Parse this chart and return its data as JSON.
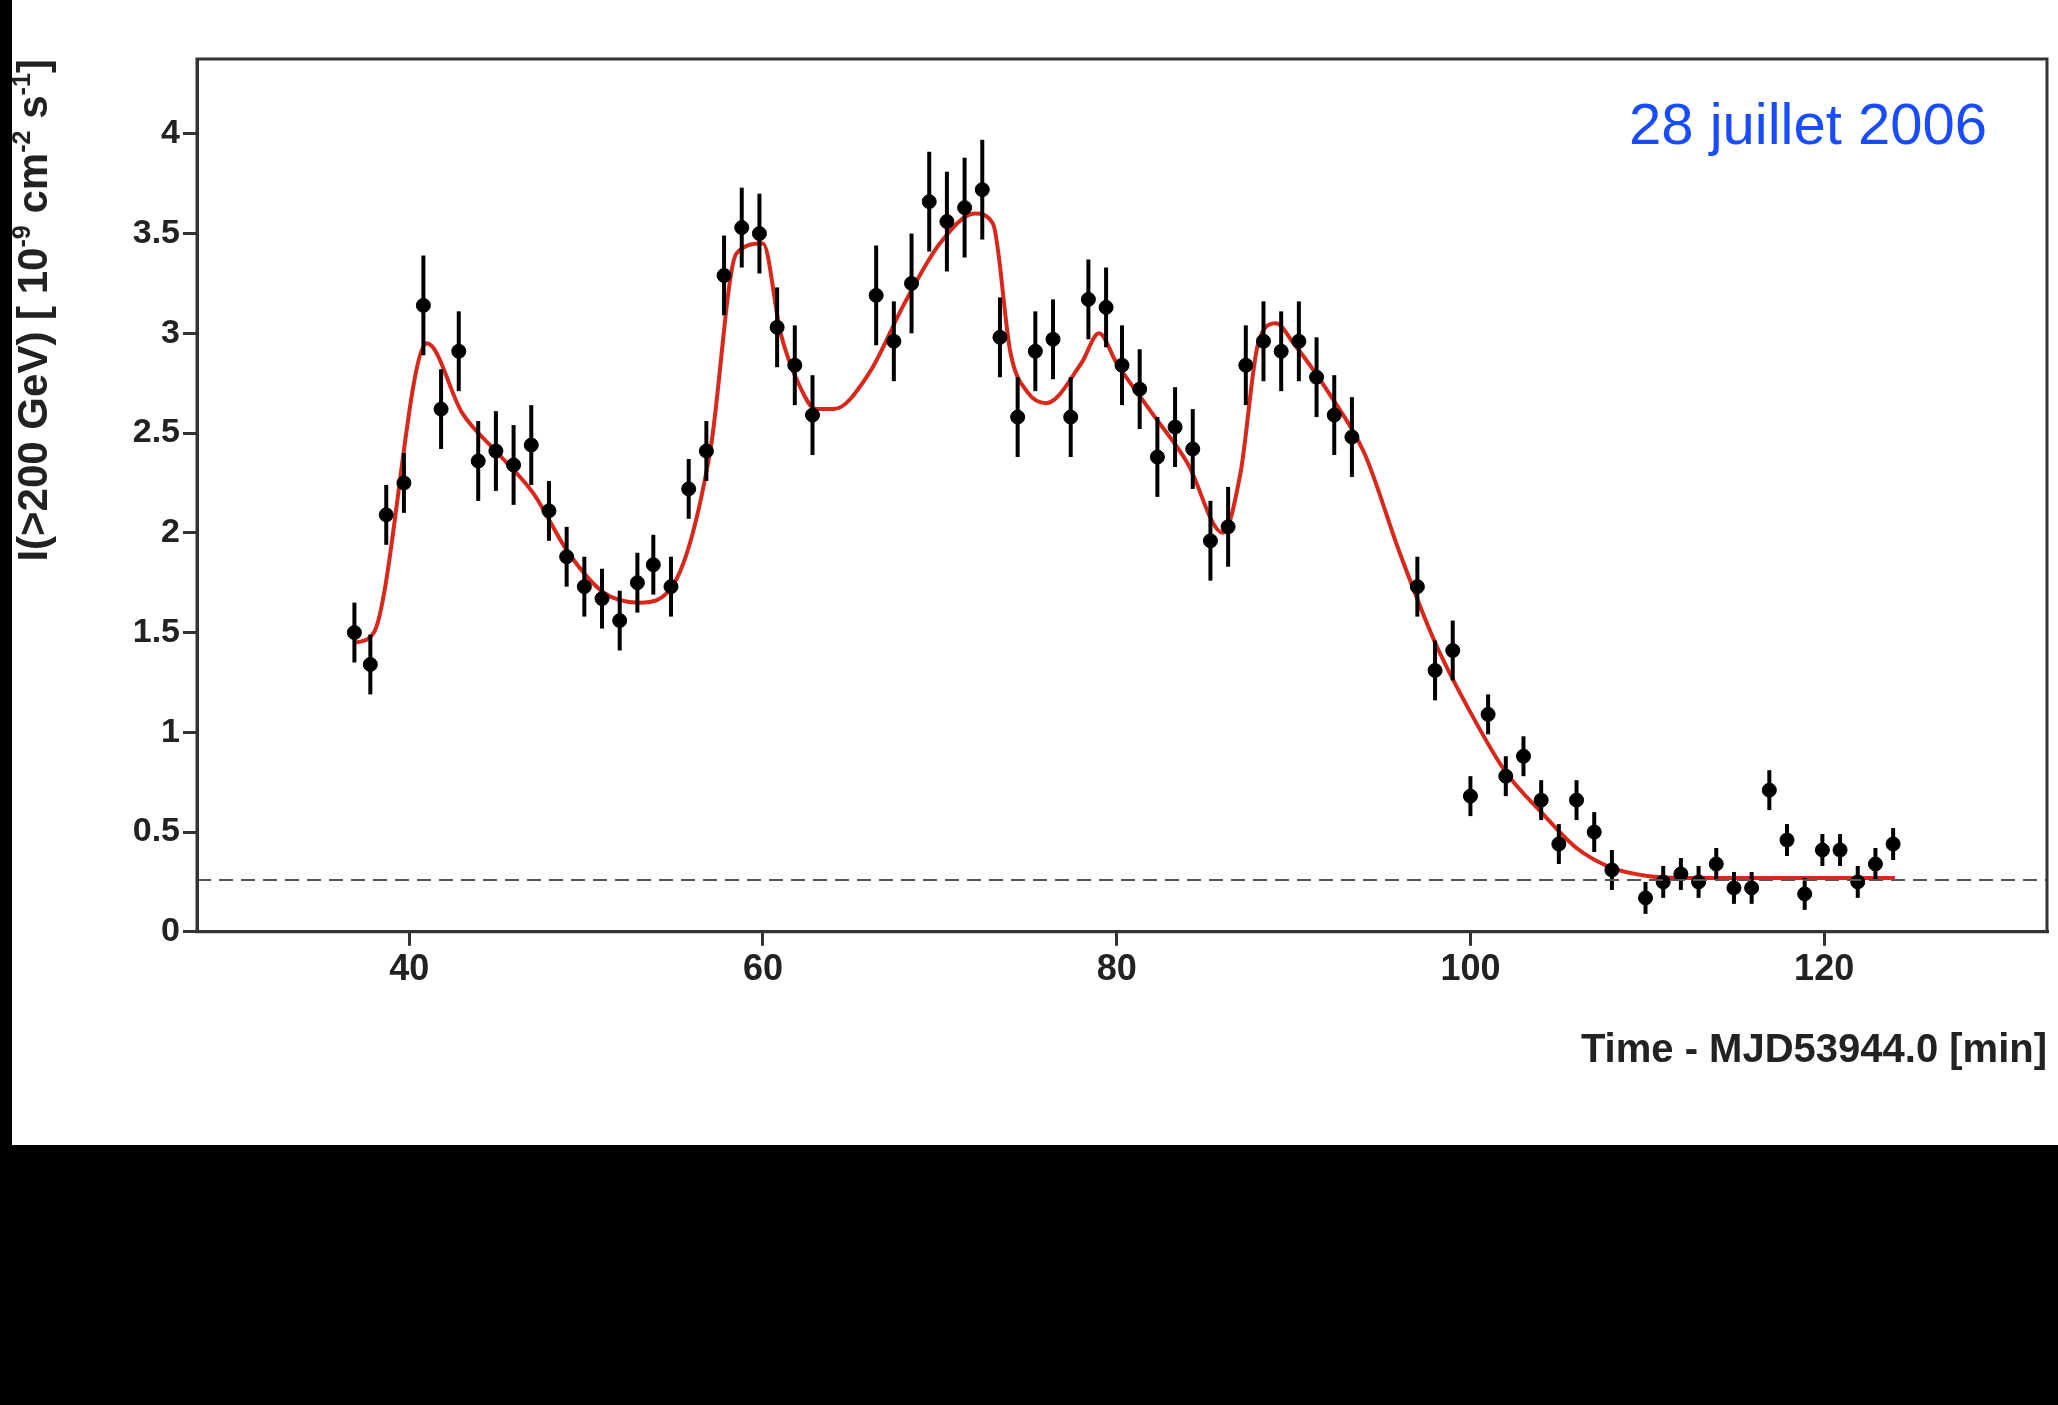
{
  "chart_data": {
    "type": "scatter",
    "xlabel": "Time - MJD53944.0 [min]",
    "ylabel": "I(>200 GeV) [ 10$^{-9}$ cm$^{-2}$ s$^{-1}$]",
    "annotations": [
      "28 juillet 2006"
    ],
    "xlim": [
      28,
      132.6
    ],
    "xticks": [
      40,
      60,
      80,
      100,
      120
    ],
    "ylim": [
      0,
      4.375
    ],
    "yticks": [
      0,
      0.5,
      1,
      1.5,
      2,
      2.5,
      3,
      3.5,
      4
    ],
    "grid": false,
    "legend": false,
    "marker": "circle",
    "ref_lines": [
      {
        "axis": "y",
        "value": 0.26,
        "color": "#555555",
        "line_style": "dashed"
      }
    ],
    "series": [
      {
        "color": "#000000",
        "x": [
          36.9,
          37.8,
          38.7,
          39.7,
          40.8,
          41.8,
          42.8,
          43.9,
          44.9,
          45.9,
          46.9,
          47.9,
          48.9,
          49.9,
          50.9,
          51.9,
          52.9,
          53.8,
          54.8,
          55.8,
          56.8,
          57.8,
          58.8,
          59.8,
          60.8,
          61.8,
          62.8,
          66.4,
          67.4,
          68.4,
          69.4,
          70.4,
          71.4,
          72.4,
          73.4,
          74.4,
          75.4,
          76.4,
          77.4,
          78.4,
          79.4,
          80.3,
          81.3,
          82.3,
          83.3,
          84.3,
          85.3,
          86.3,
          87.3,
          88.3,
          89.3,
          90.3,
          91.3,
          92.3,
          93.3,
          97.0,
          98.0,
          99.0,
          100.0,
          101.0,
          102.0,
          103.0,
          104.0,
          105.0,
          106.0,
          107.0,
          108.0,
          109.9,
          110.9,
          111.9,
          112.9,
          113.9,
          114.9,
          115.9,
          116.9,
          117.9,
          118.9,
          119.9,
          120.9,
          121.9,
          122.9,
          123.9
        ],
        "values": [
          1.5,
          1.34,
          2.09,
          2.25,
          3.14,
          2.62,
          2.91,
          2.36,
          2.41,
          2.34,
          2.44,
          2.11,
          1.88,
          1.73,
          1.67,
          1.56,
          1.75,
          1.84,
          1.73,
          2.22,
          2.41,
          3.29,
          3.53,
          3.5,
          3.03,
          2.84,
          2.59,
          3.19,
          2.96,
          3.25,
          3.66,
          3.56,
          3.63,
          3.72,
          2.98,
          2.58,
          2.91,
          2.97,
          2.58,
          3.17,
          3.13,
          2.84,
          2.72,
          2.38,
          2.53,
          2.42,
          1.96,
          2.03,
          2.84,
          2.96,
          2.91,
          2.96,
          2.78,
          2.59,
          2.48,
          1.73,
          1.31,
          1.41,
          0.68,
          1.09,
          0.78,
          0.88,
          0.66,
          0.44,
          0.66,
          0.5,
          0.31,
          0.17,
          0.25,
          0.29,
          0.25,
          0.34,
          0.22,
          0.22,
          0.71,
          0.46,
          0.19,
          0.41,
          0.41,
          0.25,
          0.34,
          0.44
        ],
        "errors": [
          0.15,
          0.15,
          0.15,
          0.15,
          0.25,
          0.2,
          0.2,
          0.2,
          0.2,
          0.2,
          0.2,
          0.15,
          0.15,
          0.15,
          0.15,
          0.15,
          0.15,
          0.15,
          0.15,
          0.15,
          0.15,
          0.2,
          0.2,
          0.2,
          0.2,
          0.2,
          0.2,
          0.25,
          0.2,
          0.25,
          0.25,
          0.25,
          0.25,
          0.25,
          0.2,
          0.2,
          0.2,
          0.2,
          0.2,
          0.2,
          0.2,
          0.2,
          0.2,
          0.2,
          0.2,
          0.2,
          0.2,
          0.2,
          0.2,
          0.2,
          0.2,
          0.2,
          0.2,
          0.2,
          0.2,
          0.15,
          0.15,
          0.15,
          0.1,
          0.1,
          0.1,
          0.1,
          0.1,
          0.1,
          0.1,
          0.1,
          0.1,
          0.08,
          0.08,
          0.08,
          0.08,
          0.08,
          0.08,
          0.08,
          0.1,
          0.08,
          0.08,
          0.08,
          0.08,
          0.08,
          0.08,
          0.08
        ]
      },
      {
        "type": "line",
        "color": "#d8281c",
        "marker": "none",
        "x": [
          37,
          38,
          41,
          43,
          45,
          47,
          49,
          51,
          53,
          55,
          57,
          58.5,
          60,
          61,
          62,
          63,
          64,
          66,
          68,
          70,
          72,
          73,
          74,
          75,
          76,
          78,
          79,
          80,
          82,
          84,
          86,
          87,
          88,
          89,
          90,
          92,
          94,
          96,
          98,
          100,
          102,
          104,
          106,
          108,
          110,
          112,
          124
        ],
        "values": [
          1.45,
          1.5,
          2.95,
          2.6,
          2.4,
          2.2,
          1.9,
          1.7,
          1.65,
          1.75,
          2.4,
          3.4,
          3.45,
          3.0,
          2.75,
          2.62,
          2.62,
          2.8,
          3.15,
          3.45,
          3.6,
          3.55,
          2.9,
          2.7,
          2.65,
          2.85,
          3.0,
          2.85,
          2.6,
          2.35,
          2.0,
          2.3,
          2.95,
          3.05,
          2.95,
          2.7,
          2.4,
          1.9,
          1.45,
          1.1,
          0.8,
          0.6,
          0.42,
          0.32,
          0.28,
          0.27,
          0.27
        ]
      }
    ]
  }
}
